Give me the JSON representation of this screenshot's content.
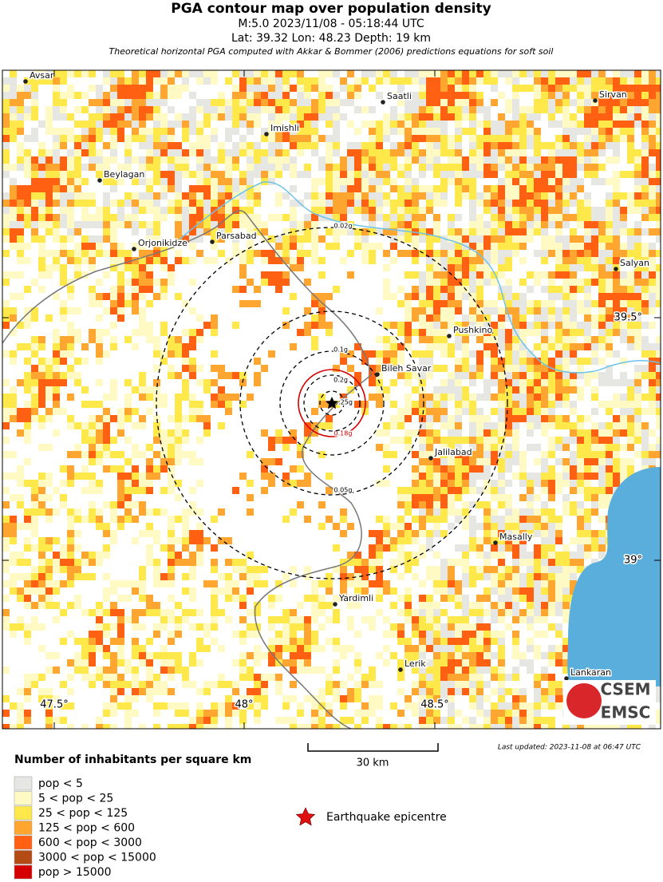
{
  "header": {
    "title": "PGA contour map over population density",
    "lines": [
      "M:5.0 2023/11/08 - 05:18:44 UTC",
      "Lat: 39.32 Lon: 48.23 Depth: 19 km",
      "Theoretical horizontal PGA computed with Akkar & Bommer (2006) predictions equations for soft soil"
    ]
  },
  "cities": [
    "Avsar",
    "Saatli",
    "Sirvan",
    "Imishli",
    "Beylagan",
    "Orjonikidze",
    "Parsabad",
    "Salyan",
    "Pushkino",
    "Bileh Savar",
    "Jalilabad",
    "Masally",
    "Yardimli",
    "Lerik",
    "Lankaran"
  ],
  "contours": [
    {
      "label": "0.02g",
      "color": "#000000"
    },
    {
      "label": "0.05g",
      "color": "#000000"
    },
    {
      "label": "0.1g",
      "color": "#000000"
    },
    {
      "label": "0.18g",
      "color": "#d40000"
    },
    {
      "label": "0.2g",
      "color": "#000000"
    },
    {
      "label": ".25g",
      "color": "#000000"
    }
  ],
  "graticule": [
    "47.5°",
    "48°",
    "48.5°",
    "39.5°",
    "39°"
  ],
  "scale_bar": "30 km",
  "last_updated": "Last updated: 2023-11-08 at 06:47 UTC",
  "legend": {
    "title": "Number of inhabitants per square km",
    "items": [
      {
        "label": "pop < 5",
        "color": "#e6e6e2"
      },
      {
        "label": "5 < pop < 25",
        "color": "#fff9c4"
      },
      {
        "label": "25 < pop < 125",
        "color": "#ffe94a"
      },
      {
        "label": "125 < pop < 600",
        "color": "#ffa630"
      },
      {
        "label": "600 < pop < 3000",
        "color": "#ff6012"
      },
      {
        "label": "3000 < pop < 15000",
        "color": "#b44a14"
      },
      {
        "label": "pop > 15000",
        "color": "#d40000"
      }
    ],
    "epicentre": "Earthquake epicentre"
  },
  "logo": [
    "CSEM",
    "EMSC"
  ]
}
